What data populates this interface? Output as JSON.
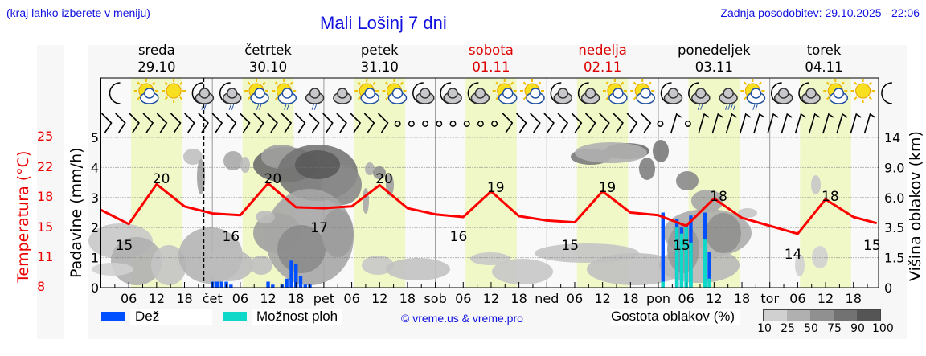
{
  "header": {
    "menu_hint": "(kraj lahko izberete v meniju)",
    "title": "Mali Lošinj 7 dni",
    "last_update": "Zadnja posodobitev: 29.10.2025 - 22:06"
  },
  "days": [
    {
      "name": "sreda",
      "date": "29.10",
      "weekend": false
    },
    {
      "name": "četrtek",
      "date": "30.10",
      "weekend": false
    },
    {
      "name": "petek",
      "date": "31.10",
      "weekend": false
    },
    {
      "name": "sobota",
      "date": "01.11",
      "weekend": true
    },
    {
      "name": "nedelja",
      "date": "02.11",
      "weekend": true
    },
    {
      "name": "ponedeljek",
      "date": "03.11",
      "weekend": false
    },
    {
      "name": "torek",
      "date": "04.11",
      "weekend": false
    }
  ],
  "axes": {
    "temperature_label": "Temperatura (°C)",
    "temperature_ticks": [
      "25",
      "22",
      "18",
      "15",
      "11",
      "8"
    ],
    "precip_label": "Padavine (mm/h)",
    "precip_ticks": [
      "5",
      "4",
      "3",
      "2",
      "1",
      "0"
    ],
    "cloud_height_label": "Višina oblakov (km)",
    "cloud_height_ticks": [
      "14",
      "9.0",
      "6.0",
      "3.5",
      "1.5",
      "0"
    ],
    "x_ticks": [
      "06",
      "12",
      "18",
      "čet",
      "06",
      "12",
      "18",
      "pet",
      "06",
      "12",
      "18",
      "sob",
      "06",
      "12",
      "18",
      "ned",
      "06",
      "12",
      "18",
      "pon",
      "06",
      "12",
      "18",
      "tor",
      "06",
      "12",
      "18"
    ]
  },
  "legend": {
    "rain_label": "Dež",
    "rain_color": "#0050ff",
    "showers_label": "Možnost ploh",
    "showers_color": "#10d8c8",
    "credit": "© vreme.us & vreme.pro",
    "cloud_density_label": "Gostota oblakov (%)",
    "cloud_density_ticks": [
      "10",
      "25",
      "50",
      "75",
      "90",
      "100"
    ],
    "cloud_density_colors": [
      "#d0d0d0",
      "#b0b0b0",
      "#909090",
      "#727272",
      "#555555"
    ]
  },
  "colors": {
    "temperature_line": "#ff0000",
    "daytime_shade": "#f0f8c8",
    "weekend_text": "#dd0000",
    "text_blue": "#1010e0"
  },
  "chart_data": {
    "type": "line",
    "title": "Mali Lošinj 7 dni",
    "xlabel": "",
    "ylabel": "Temperatura (°C)",
    "ylim": [
      8,
      25
    ],
    "y2label": "Padavine (mm/h)",
    "y2lim": [
      0,
      5
    ],
    "y3label": "Višina oblakov (km)",
    "y3_ticks": [
      0,
      1.5,
      3.5,
      6.0,
      9.0,
      14
    ],
    "now_marker": "29.10 22:06",
    "series": [
      {
        "name": "Temperatura",
        "color": "#ff0000",
        "x_hours": [
          0,
          6,
          12,
          18,
          24,
          30,
          36,
          42,
          48,
          54,
          60,
          66,
          72,
          78,
          84,
          90,
          96,
          102,
          108,
          114,
          120,
          126,
          132,
          138,
          144,
          150,
          156,
          162,
          167
        ],
        "values": [
          16.8,
          15.2,
          19.7,
          17.2,
          16.4,
          16.2,
          19.8,
          17.1,
          17.0,
          17.2,
          19.6,
          17.0,
          16.3,
          16.0,
          18.9,
          16.1,
          15.6,
          15.4,
          18.9,
          16.5,
          16.2,
          15.0,
          18.1,
          15.9,
          15.0,
          14.1,
          18.0,
          16.0,
          15.3
        ],
        "labels": [
          {
            "hour": 5,
            "value": 15
          },
          {
            "hour": 13,
            "value": 20
          },
          {
            "hour": 28,
            "value": 16
          },
          {
            "hour": 37,
            "value": 20
          },
          {
            "hour": 47,
            "value": 17
          },
          {
            "hour": 61,
            "value": 20
          },
          {
            "hour": 77,
            "value": 16
          },
          {
            "hour": 85,
            "value": 19
          },
          {
            "hour": 101,
            "value": 15
          },
          {
            "hour": 109,
            "value": 19
          },
          {
            "hour": 125,
            "value": 15
          },
          {
            "hour": 133,
            "value": 18
          },
          {
            "hour": 149,
            "value": 14
          },
          {
            "hour": 157,
            "value": 18
          },
          {
            "hour": 166,
            "value": 15
          }
        ]
      },
      {
        "name": "Dež (mm/h)",
        "color": "#0050ff",
        "type": "bar",
        "x_hours": [
          24,
          25,
          26,
          27,
          28,
          36,
          37,
          39,
          40,
          41,
          42,
          43,
          44,
          45,
          121,
          124,
          125,
          126,
          127,
          130,
          131
        ],
        "values": [
          0.2,
          0.2,
          0.2,
          0.2,
          0.1,
          0.2,
          0.1,
          0.1,
          0.3,
          0.9,
          0.8,
          0.4,
          0.1,
          0.1,
          2.5,
          2.3,
          2.0,
          2.1,
          2.4,
          2.5,
          1.2
        ]
      },
      {
        "name": "Možnost ploh",
        "color": "#10d8c8",
        "type": "bar",
        "x_hours": [
          121,
          124,
          125,
          126,
          127,
          130,
          131
        ],
        "values": [
          0.2,
          2.0,
          1.8,
          2.0,
          1.5,
          1.6,
          0.3
        ]
      }
    ],
    "wind_barbs_summary": "NW barbs (light-moderate) Wed–Fri, calm Sat, NW/N barbs Sun, calm/variable Mon night, SW-W barbs Mon–Tue",
    "weather_icons": [
      "moon",
      "sun-cloud",
      "sun",
      "moon-cloud-rain",
      "moon-cloud-rain",
      "sun-cloud-rain",
      "sun-cloud-rain",
      "cloud-rain",
      "clouds",
      "sun-cloud",
      "sun-cloud",
      "moon-cloud",
      "moon-cloud",
      "moon-cloud",
      "sun-cloud",
      "sun-cloud",
      "moon-cloud",
      "moon-cloud",
      "sun-cloud",
      "sun-cloud",
      "moon-cloud",
      "moon-cloud-rain",
      "cloud-rain-heavy",
      "sun-cloud-rain",
      "moon-cloud",
      "moon-cloud",
      "sun-cloud",
      "sun",
      "moon"
    ]
  }
}
